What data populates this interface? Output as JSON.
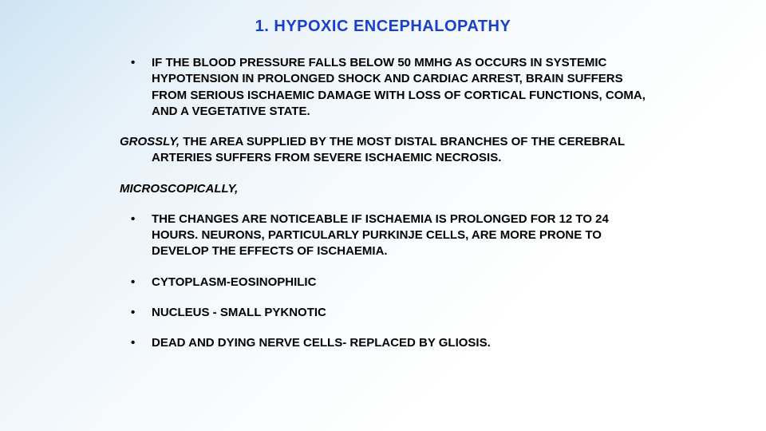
{
  "slide": {
    "title": "1. HYPOXIC ENCEPHALOPATHY",
    "title_color": "#1a3fc9",
    "title_fontsize": 20,
    "body_color": "#000000",
    "body_fontsize": 15,
    "intro_bullet": "IF THE BLOOD PRESSURE FALLS BELOW 50 MMHG AS OCCURS IN SYSTEMIC HYPOTENSION IN PROLONGED SHOCK AND CARDIAC ARREST, BRAIN SUFFERS FROM SERIOUS ISCHAEMIC DAMAGE WITH LOSS OF CORTICAL FUNCTIONS, COMA, AND A VEGETATIVE STATE.",
    "grossly_label": "GROSSLY,",
    "grossly_text": " THE AREA SUPPLIED BY THE MOST DISTAL BRANCHES OF THE CEREBRAL ARTERIES SUFFERS FROM SEVERE ISCHAEMIC NECROSIS.",
    "micro_label": "MICROSCOPICALLY,",
    "micro_bullets": [
      "THE CHANGES ARE NOTICEABLE IF ISCHAEMIA IS PROLONGED FOR 12 TO 24 HOURS. NEURONS, PARTICULARLY PURKINJE CELLS, ARE MORE PRONE TO DEVELOP THE EFFECTS OF ISCHAEMIA.",
      "CYTOPLASM-EOSINOPHILIC",
      "NUCLEUS - SMALL PYKNOTIC",
      "DEAD AND DYING NERVE CELLS- REPLACED BY GLIOSIS."
    ],
    "background_gradient": {
      "from": "#cde4f4",
      "to": "#ffffff",
      "angle_deg": 135
    }
  }
}
